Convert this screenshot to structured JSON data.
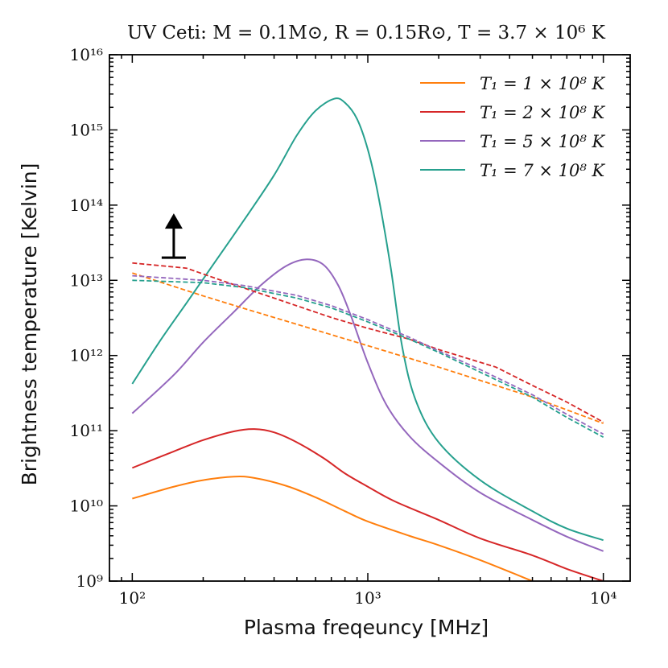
{
  "chart_data": {
    "type": "line",
    "title": "UV Ceti: M = 0.1M⊙, R = 0.15R⊙, T = 3.7 × 10⁶ K",
    "xlabel": "Plasma freqeuncy [MHz]",
    "ylabel": "Brightness temperature [Kelvin]",
    "xscale": "log",
    "yscale": "log",
    "xlim": [
      80,
      13000
    ],
    "ylim": [
      1000000000.0,
      1e+16
    ],
    "x_ticks": [
      {
        "value": 100,
        "label": "10²"
      },
      {
        "value": 1000,
        "label": "10³"
      },
      {
        "value": 10000,
        "label": "10⁴"
      }
    ],
    "y_ticks": [
      {
        "value": 1000000000.0,
        "label": "10⁹"
      },
      {
        "value": 10000000000.0,
        "label": "10¹⁰"
      },
      {
        "value": 100000000000.0,
        "label": "10¹¹"
      },
      {
        "value": 1000000000000.0,
        "label": "10¹²"
      },
      {
        "value": 10000000000000.0,
        "label": "10¹³"
      },
      {
        "value": 100000000000000.0,
        "label": "10¹⁴"
      },
      {
        "value": 1000000000000000.0,
        "label": "10¹⁵"
      },
      {
        "value": 1e+16,
        "label": "10¹⁶"
      }
    ],
    "legend_position": "top-right",
    "series": [
      {
        "name": "T₁ = 1 × 10⁸ K",
        "color": "#ff7f0e",
        "style": "solid",
        "show_in_legend": true,
        "points": [
          [
            100,
            12500000000.0
          ],
          [
            150,
            18000000000.0
          ],
          [
            200,
            22000000000.0
          ],
          [
            270,
            24500000000.0
          ],
          [
            330,
            23500000000.0
          ],
          [
            450,
            18500000000.0
          ],
          [
            600,
            13000000000.0
          ],
          [
            800,
            8500000000.0
          ],
          [
            1000,
            6200000000.0
          ],
          [
            1500,
            4000000000.0
          ],
          [
            2000,
            3000000000.0
          ],
          [
            3000,
            1900000000.0
          ],
          [
            5000,
            1000000000.0
          ]
        ]
      },
      {
        "name": "T₁ = 2 × 10⁸ K",
        "color": "#d62728",
        "style": "solid",
        "show_in_legend": true,
        "points": [
          [
            100,
            32000000000.0
          ],
          [
            150,
            53000000000.0
          ],
          [
            200,
            75000000000.0
          ],
          [
            270,
            98000000000.0
          ],
          [
            330,
            105000000000.0
          ],
          [
            400,
            95000000000.0
          ],
          [
            500,
            70000000000.0
          ],
          [
            650,
            43000000000.0
          ],
          [
            800,
            27000000000.0
          ],
          [
            1000,
            18000000000.0
          ],
          [
            1300,
            11500000000.0
          ],
          [
            2000,
            6500000000.0
          ],
          [
            3000,
            3700000000.0
          ],
          [
            5000,
            2200000000.0
          ],
          [
            7000,
            1450000000.0
          ],
          [
            10000,
            1000000000.0
          ]
        ]
      },
      {
        "name": "T₁ = 5 × 10⁸ K",
        "color": "#9467bd",
        "style": "solid",
        "show_in_legend": true,
        "points": [
          [
            100,
            170000000000.0
          ],
          [
            150,
            550000000000.0
          ],
          [
            200,
            1500000000000.0
          ],
          [
            270,
            3800000000000.0
          ],
          [
            350,
            8500000000000.0
          ],
          [
            450,
            15500000000000.0
          ],
          [
            550,
            19000000000000.0
          ],
          [
            650,
            16000000000000.0
          ],
          [
            750,
            8500000000000.0
          ],
          [
            850,
            3300000000000.0
          ],
          [
            1000,
            800000000000.0
          ],
          [
            1200,
            220000000000.0
          ],
          [
            1500,
            85000000000.0
          ],
          [
            2000,
            38000000000.0
          ],
          [
            3000,
            15000000000.0
          ],
          [
            5000,
            6500000000.0
          ],
          [
            7000,
            3900000000.0
          ],
          [
            10000,
            2500000000.0
          ]
        ]
      },
      {
        "name": "T₁ = 7 × 10⁸ K",
        "color": "#26a08e",
        "style": "solid",
        "show_in_legend": true,
        "points": [
          [
            100,
            420000000000.0
          ],
          [
            130,
            1500000000000.0
          ],
          [
            170,
            5000000000000.0
          ],
          [
            220,
            16000000000000.0
          ],
          [
            300,
            65000000000000.0
          ],
          [
            400,
            250000000000000.0
          ],
          [
            500,
            850000000000000.0
          ],
          [
            600,
            1800000000000000.0
          ],
          [
            720,
            2600000000000000.0
          ],
          [
            800,
            2300000000000000.0
          ],
          [
            900,
            1400000000000000.0
          ],
          [
            1000,
            550000000000000.0
          ],
          [
            1100,
            150000000000000.0
          ],
          [
            1250,
            15000000000000.0
          ],
          [
            1400,
            1300000000000.0
          ],
          [
            1600,
            250000000000.0
          ],
          [
            2000,
            70000000000.0
          ],
          [
            3000,
            22000000000.0
          ],
          [
            5000,
            8500000000.0
          ],
          [
            7000,
            5000000000.0
          ],
          [
            10000,
            3500000000.0
          ]
        ]
      },
      {
        "name": "T₁ = 1 × 10⁸ K (dashed)",
        "color": "#ff7f0e",
        "style": "dashed",
        "show_in_legend": false,
        "points": [
          [
            100,
            12500000000000.0
          ],
          [
            200,
            6200000000000.0
          ],
          [
            300,
            4200000000000.0
          ],
          [
            500,
            2600000000000.0
          ],
          [
            1000,
            1350000000000.0
          ],
          [
            2000,
            700000000000.0
          ],
          [
            5000,
            280000000000.0
          ],
          [
            10000,
            125000000000.0
          ]
        ]
      },
      {
        "name": "T₁ = 2 × 10⁸ K (dashed)",
        "color": "#d62728",
        "style": "dashed",
        "show_in_legend": false,
        "points": [
          [
            100,
            17000000000000.0
          ],
          [
            170,
            14500000000000.0
          ],
          [
            250,
            9500000000000.0
          ],
          [
            400,
            5800000000000.0
          ],
          [
            700,
            3200000000000.0
          ],
          [
            1000,
            2300000000000.0
          ],
          [
            1500,
            1650000000000.0
          ],
          [
            2000,
            1200000000000.0
          ],
          [
            3500,
            700000000000.0
          ],
          [
            5000,
            400000000000.0
          ],
          [
            7000,
            240000000000.0
          ],
          [
            10000,
            130000000000.0
          ]
        ]
      },
      {
        "name": "T₁ = 5 × 10⁸ K (dashed)",
        "color": "#9467bd",
        "style": "dashed",
        "show_in_legend": false,
        "points": [
          [
            100,
            11500000000000.0
          ],
          [
            200,
            10000000000000.0
          ],
          [
            300,
            8500000000000.0
          ],
          [
            500,
            6300000000000.0
          ],
          [
            700,
            4600000000000.0
          ],
          [
            1000,
            3000000000000.0
          ],
          [
            1500,
            1750000000000.0
          ],
          [
            2000,
            1150000000000.0
          ],
          [
            3000,
            650000000000.0
          ],
          [
            5000,
            300000000000.0
          ],
          [
            7000,
            165000000000.0
          ],
          [
            10000,
            90000000000.0
          ]
        ]
      },
      {
        "name": "T₁ = 7 × 10⁸ K (dashed)",
        "color": "#26a08e",
        "style": "dashed",
        "show_in_legend": false,
        "points": [
          [
            100,
            10000000000000.0
          ],
          [
            200,
            9300000000000.0
          ],
          [
            300,
            8000000000000.0
          ],
          [
            500,
            5800000000000.0
          ],
          [
            700,
            4300000000000.0
          ],
          [
            1000,
            2800000000000.0
          ],
          [
            1500,
            1650000000000.0
          ],
          [
            2000,
            1100000000000.0
          ],
          [
            3000,
            600000000000.0
          ],
          [
            5000,
            280000000000.0
          ],
          [
            7000,
            150000000000.0
          ],
          [
            10000,
            82000000000.0
          ]
        ]
      }
    ],
    "annotations": [
      {
        "type": "lower-limit-arrow",
        "x": 150,
        "y": 20000000000000.0,
        "color": "#000000"
      }
    ]
  }
}
